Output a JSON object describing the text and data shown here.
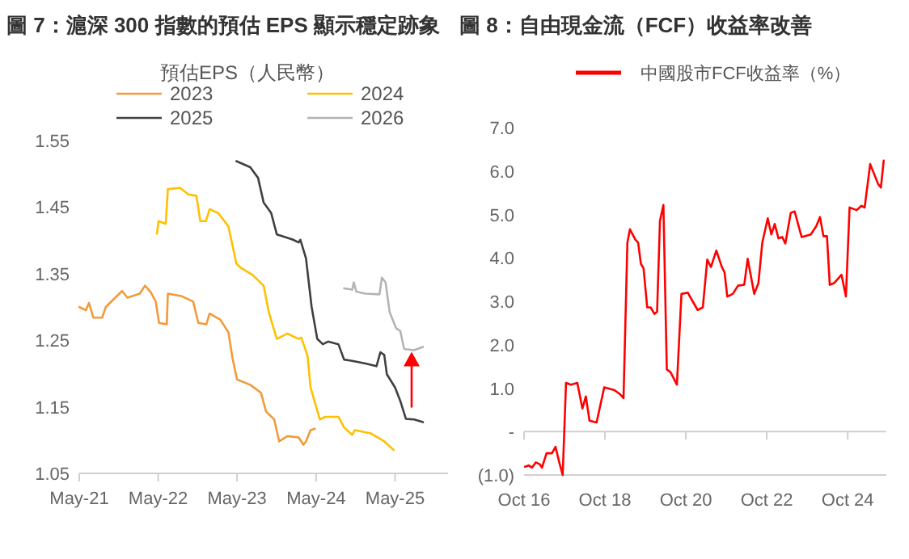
{
  "chart_data": [
    {
      "type": "line",
      "title": "圖 7：滬深 300 指數的預估 EPS 顯示穩定跡象",
      "legend_title": "預估EPS（人民幣）",
      "legend": "top",
      "xlim": [
        "2021-05-01",
        "2026-01-01"
      ],
      "ylim": [
        1.05,
        1.55
      ],
      "xticks": [
        {
          "value": "2021-05-01",
          "label": "May-21"
        },
        {
          "value": "2022-05-01",
          "label": "May-22"
        },
        {
          "value": "2023-05-01",
          "label": "May-23"
        },
        {
          "value": "2024-05-01",
          "label": "May-24"
        },
        {
          "value": "2025-05-01",
          "label": "May-25"
        }
      ],
      "yticks": [
        {
          "value": 1.05,
          "label": "1.05"
        },
        {
          "value": 1.15,
          "label": "1.15"
        },
        {
          "value": 1.25,
          "label": "1.25"
        },
        {
          "value": 1.35,
          "label": "1.35"
        },
        {
          "value": 1.45,
          "label": "1.45"
        },
        {
          "value": 1.55,
          "label": "1.55"
        }
      ],
      "series": [
        {
          "name": "2023",
          "color": "#f39a3a",
          "x": [
            "2021-05-01",
            "2021-06-01",
            "2021-06-15",
            "2021-07-05",
            "2021-08-15",
            "2021-09-01",
            "2021-11-15",
            "2021-12-10",
            "2022-02-05",
            "2022-03-01",
            "2022-03-28",
            "2022-04-20",
            "2022-05-05",
            "2022-06-10",
            "2022-06-15",
            "2022-08-20",
            "2022-10-10",
            "2022-11-03",
            "2022-12-10",
            "2022-12-25",
            "2023-02-12",
            "2023-03-22",
            "2023-04-10",
            "2023-05-01",
            "2023-07-01",
            "2023-08-20",
            "2023-09-12",
            "2023-10-20",
            "2023-11-12",
            "2023-12-20",
            "2024-02-10",
            "2024-03-03",
            "2024-03-15",
            "2024-04-05",
            "2024-04-25"
          ],
          "values": [
            1.3,
            1.295,
            1.306,
            1.284,
            1.284,
            1.3,
            1.324,
            1.314,
            1.32,
            1.332,
            1.322,
            1.308,
            1.276,
            1.274,
            1.32,
            1.316,
            1.308,
            1.276,
            1.274,
            1.29,
            1.281,
            1.262,
            1.223,
            1.191,
            1.183,
            1.171,
            1.143,
            1.131,
            1.098,
            1.106,
            1.104,
            1.093,
            1.098,
            1.115,
            1.117
          ]
        },
        {
          "name": "2024",
          "color": "#ffc000",
          "x": [
            "2022-04-25",
            "2022-05-03",
            "2022-06-05",
            "2022-06-15",
            "2022-08-10",
            "2022-09-18",
            "2022-10-25",
            "2022-11-12",
            "2022-12-08",
            "2022-12-25",
            "2023-02-03",
            "2023-03-22",
            "2023-04-28",
            "2023-05-22",
            "2023-07-12",
            "2023-09-01",
            "2023-09-25",
            "2023-11-01",
            "2023-12-20",
            "2024-02-10",
            "2024-02-22",
            "2024-03-22",
            "2024-04-05",
            "2024-05-18",
            "2024-06-12",
            "2024-08-12",
            "2024-09-07",
            "2024-10-15",
            "2024-10-27",
            "2025-01-10",
            "2025-03-12",
            "2025-04-25"
          ],
          "values": [
            1.41,
            1.429,
            1.425,
            1.477,
            1.479,
            1.469,
            1.467,
            1.429,
            1.429,
            1.447,
            1.441,
            1.421,
            1.365,
            1.358,
            1.348,
            1.332,
            1.292,
            1.252,
            1.26,
            1.252,
            1.254,
            1.227,
            1.179,
            1.131,
            1.135,
            1.135,
            1.119,
            1.108,
            1.115,
            1.11,
            1.098,
            1.085
          ]
        },
        {
          "name": "2025",
          "color": "#404040",
          "x": [
            "2023-04-28",
            "2023-07-01",
            "2023-08-06",
            "2023-09-01",
            "2023-10-06",
            "2023-11-01",
            "2023-12-10",
            "2024-01-15",
            "2024-02-10",
            "2024-02-18",
            "2024-03-15",
            "2024-04-10",
            "2024-05-06",
            "2024-06-01",
            "2024-06-25",
            "2024-08-12",
            "2024-09-07",
            "2024-10-15",
            "2024-12-15",
            "2025-02-04",
            "2025-02-22",
            "2025-03-12",
            "2025-03-24",
            "2025-05-01",
            "2025-05-25",
            "2025-06-20",
            "2025-07-28",
            "2025-09-07"
          ],
          "values": [
            1.519,
            1.51,
            1.494,
            1.457,
            1.441,
            1.409,
            1.405,
            1.401,
            1.397,
            1.401,
            1.373,
            1.3,
            1.252,
            1.244,
            1.248,
            1.244,
            1.221,
            1.219,
            1.215,
            1.211,
            1.232,
            1.228,
            1.199,
            1.179,
            1.159,
            1.132,
            1.131,
            1.127
          ]
        },
        {
          "name": "2026",
          "color": "#b4b4b4",
          "x": [
            "2024-09-07",
            "2024-10-15",
            "2024-10-22",
            "2024-11-03",
            "2024-12-15",
            "2025-02-18",
            "2025-03-01",
            "2025-03-18",
            "2025-04-06",
            "2025-05-06",
            "2025-05-25",
            "2025-06-12",
            "2025-07-28",
            "2025-09-07"
          ],
          "values": [
            1.328,
            1.326,
            1.337,
            1.323,
            1.32,
            1.319,
            1.344,
            1.337,
            1.292,
            1.268,
            1.264,
            1.237,
            1.235,
            1.24
          ]
        }
      ]
    },
    {
      "type": "line",
      "title": "圖 8：自由現金流（FCF）收益率改善",
      "legend": "top",
      "xlim": [
        "2016-10-01",
        "2025-09-15"
      ],
      "ylim": [
        -1,
        7
      ],
      "xticks": [
        {
          "value": "2016-10-01",
          "label": "Oct 16"
        },
        {
          "value": "2018-10-01",
          "label": "Oct 18"
        },
        {
          "value": "2020-10-01",
          "label": "Oct 20"
        },
        {
          "value": "2022-10-01",
          "label": "Oct 22"
        },
        {
          "value": "2024-10-01",
          "label": "Oct 24"
        }
      ],
      "yticks": [
        {
          "value": -1,
          "label": "(1.0)"
        },
        {
          "value": 0,
          "label": "-"
        },
        {
          "value": 1,
          "label": "1.0"
        },
        {
          "value": 2,
          "label": "2.0"
        },
        {
          "value": 3,
          "label": "3.0"
        },
        {
          "value": 4,
          "label": "4.0"
        },
        {
          "value": 5,
          "label": "5.0"
        },
        {
          "value": 6,
          "label": "6.0"
        },
        {
          "value": 7,
          "label": "7.0"
        }
      ],
      "series": [
        {
          "name": "中國股市FCF收益率（%）",
          "color": "#ff0000",
          "x": [
            "2016-10-10",
            "2016-11-12",
            "2016-12-12",
            "2017-01-15",
            "2017-02-18",
            "2017-03-12",
            "2017-04-22",
            "2017-06-10",
            "2017-07-12",
            "2017-08-12",
            "2017-09-15",
            "2017-10-15",
            "2017-11-28",
            "2018-01-25",
            "2018-03-12",
            "2018-04-12",
            "2018-05-15",
            "2018-07-18",
            "2018-09-25",
            "2018-12-22",
            "2019-02-10",
            "2019-03-18",
            "2019-04-22",
            "2019-05-15",
            "2019-07-03",
            "2019-07-28",
            "2019-08-22",
            "2019-09-15",
            "2019-10-18",
            "2019-11-18",
            "2019-12-22",
            "2020-01-15",
            "2020-02-10",
            "2020-03-12",
            "2020-04-12",
            "2020-05-15",
            "2020-07-12",
            "2020-08-22",
            "2020-10-18",
            "2021-01-15",
            "2021-03-03",
            "2021-04-12",
            "2021-05-15",
            "2021-07-03",
            "2021-08-22",
            "2021-09-15",
            "2021-10-10",
            "2021-11-28",
            "2022-01-15",
            "2022-03-12",
            "2022-04-12",
            "2022-06-10",
            "2022-07-18",
            "2022-08-22",
            "2022-10-10",
            "2022-11-12",
            "2022-12-12",
            "2023-01-15",
            "2023-02-18",
            "2023-03-18",
            "2023-05-06",
            "2023-06-10",
            "2023-08-12",
            "2023-11-03",
            "2023-12-22",
            "2024-01-25",
            "2024-02-25",
            "2024-03-28",
            "2024-04-22",
            "2024-06-01",
            "2024-08-06",
            "2024-09-15",
            "2024-10-18",
            "2024-12-22",
            "2025-02-01",
            "2025-03-03",
            "2025-04-22",
            "2025-07-03",
            "2025-07-28",
            "2025-08-22"
          ],
          "values": [
            -0.81,
            -0.78,
            -0.83,
            -0.71,
            -0.75,
            -0.83,
            -0.5,
            -0.5,
            -0.35,
            -0.68,
            -1.0,
            1.12,
            1.08,
            1.12,
            0.53,
            0.81,
            0.25,
            0.21,
            1.02,
            0.96,
            0.87,
            0.77,
            4.35,
            4.66,
            4.42,
            4.35,
            3.86,
            3.76,
            2.86,
            2.86,
            2.71,
            2.76,
            4.85,
            5.22,
            1.43,
            1.37,
            1.08,
            3.17,
            3.2,
            2.8,
            2.86,
            3.96,
            3.79,
            4.17,
            3.79,
            3.67,
            3.11,
            3.17,
            3.36,
            3.38,
            3.98,
            3.17,
            3.42,
            4.35,
            4.91,
            4.54,
            4.78,
            4.45,
            4.48,
            4.33,
            5.04,
            5.07,
            4.48,
            4.54,
            4.73,
            4.94,
            4.5,
            4.5,
            3.38,
            3.42,
            3.61,
            3.11,
            5.16,
            5.1,
            5.2,
            5.16,
            6.16,
            5.7,
            5.62,
            6.24
          ]
        }
      ]
    }
  ]
}
